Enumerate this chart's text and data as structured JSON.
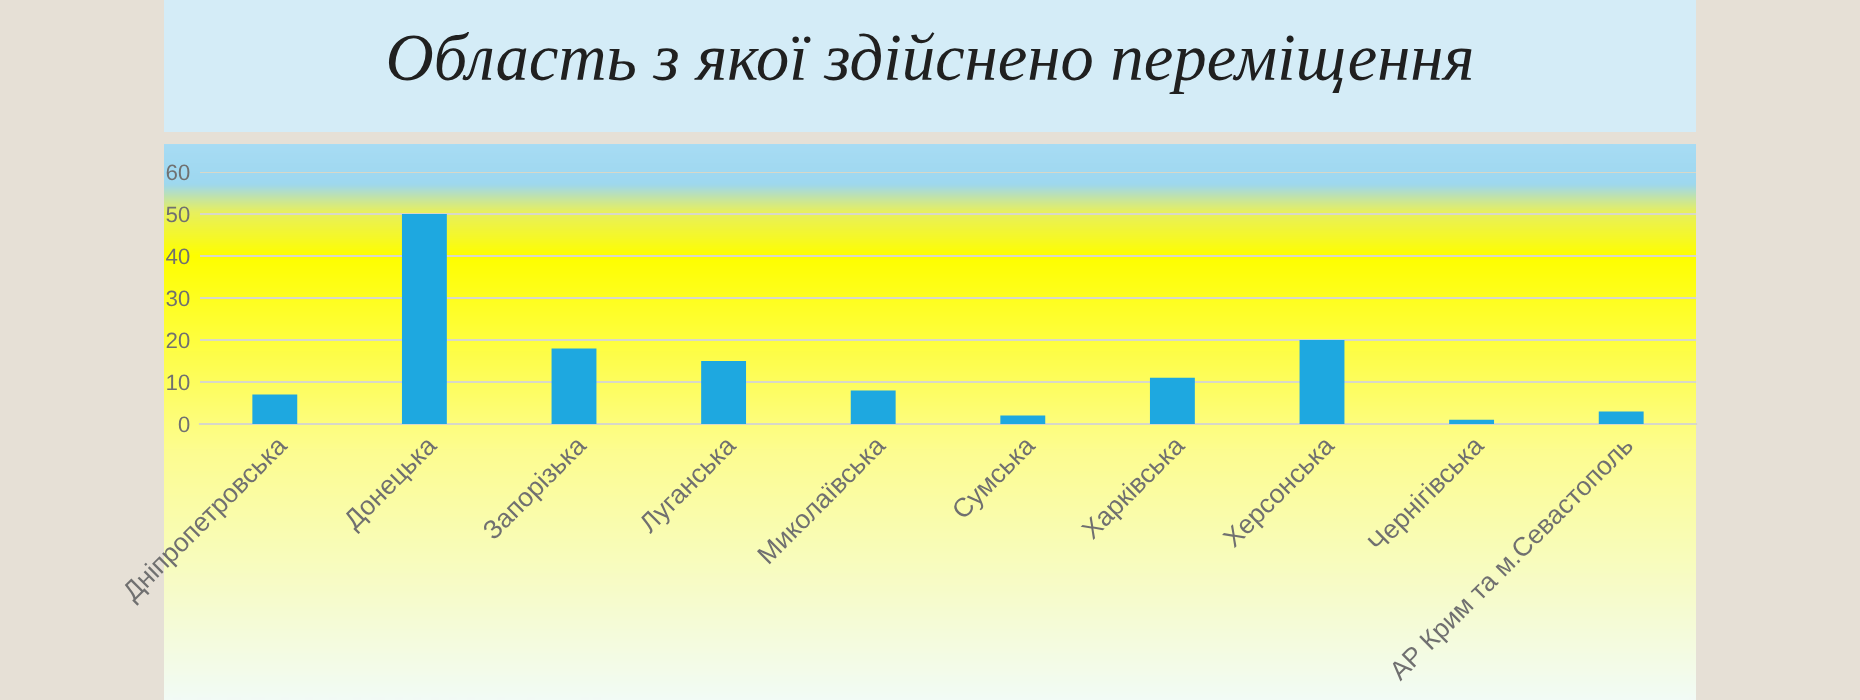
{
  "chart_data": {
    "type": "bar",
    "title": "Область з якої здійснено переміщення",
    "categories": [
      "Дніпропетровська",
      "Донецька",
      "Запорізька",
      "Луганська",
      "Миколаївська",
      "Сумська",
      "Харківська",
      "Херсонська",
      "Чернігівська",
      "АР Крим та м.Севастополь"
    ],
    "values": [
      7,
      50,
      18,
      15,
      8,
      2,
      11,
      20,
      1,
      3
    ],
    "color": "#1ea8e0",
    "ylim": [
      0,
      60
    ],
    "yticks": [
      0,
      10,
      20,
      30,
      40,
      50,
      60
    ],
    "grid": "y"
  }
}
